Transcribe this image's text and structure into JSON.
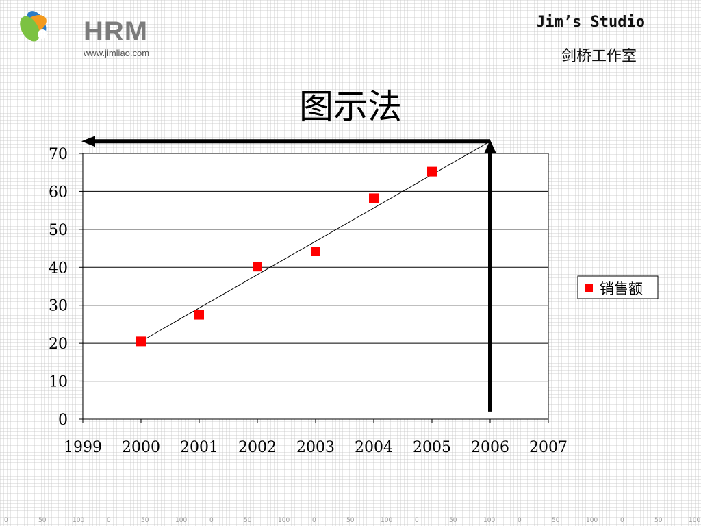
{
  "header": {
    "logo_text": "HRM",
    "logo_url": "www.jimliao.com",
    "studio_name": "Jim’s Studio",
    "studio_name_cn": "剑桥工作室"
  },
  "slide": {
    "title": "图示法"
  },
  "chart_data": {
    "type": "scatter",
    "title": "",
    "xlabel": "",
    "ylabel": "",
    "xlim": [
      1999,
      2007
    ],
    "ylim": [
      0,
      70
    ],
    "x_ticks": [
      1999,
      2000,
      2001,
      2002,
      2003,
      2004,
      2005,
      2006,
      2007
    ],
    "y_ticks": [
      0,
      10,
      20,
      30,
      40,
      50,
      60,
      70
    ],
    "grid": "horizontal",
    "legend_position": "right",
    "series": [
      {
        "name": "销售额",
        "color": "#ff0000",
        "marker": "square",
        "x": [
          2000,
          2001,
          2002,
          2003,
          2004,
          2005
        ],
        "y": [
          20.5,
          27.5,
          40.2,
          44.2,
          58.2,
          65.2
        ]
      }
    ],
    "trendline": {
      "x": [
        2000,
        2006
      ],
      "y": [
        20.5,
        73.2
      ],
      "color": "#000000"
    },
    "arrows": [
      {
        "from": [
          2006,
          2
        ],
        "to": [
          2006,
          73.2
        ],
        "direction": "up"
      },
      {
        "from": [
          2006,
          73.2
        ],
        "to": [
          1999,
          73.2
        ],
        "direction": "left"
      }
    ]
  },
  "ruler": {
    "labels": [
      "0",
      "50",
      "100",
      "0",
      "50",
      "100",
      "0",
      "50",
      "100",
      "0",
      "50",
      "100",
      "0",
      "50",
      "100",
      "0",
      "50",
      "100",
      "0",
      "50",
      "100"
    ]
  },
  "colors": {
    "logo_blue": "#2b7bc6",
    "logo_green": "#7cc242",
    "logo_orange": "#f39a1e",
    "marker_red": "#ff0000"
  }
}
